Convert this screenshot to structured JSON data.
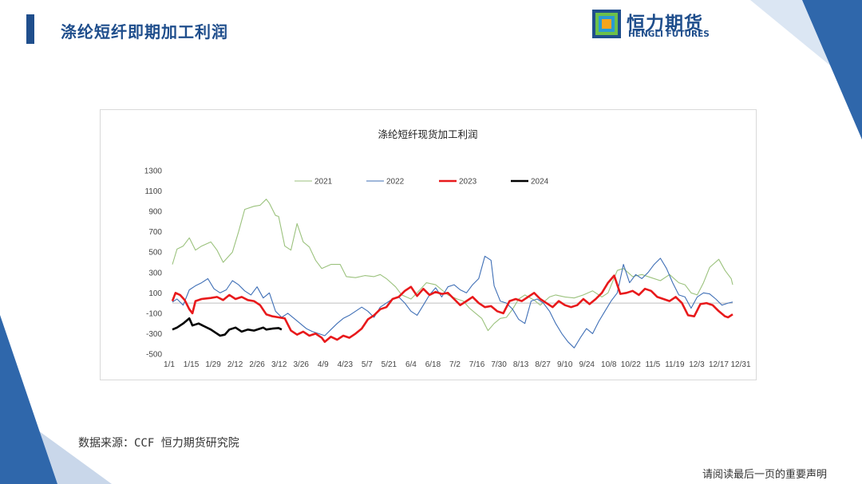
{
  "header": {
    "title": "涤纶短纤即期加工利润",
    "logo_cn": "恒力期货",
    "logo_en": "HENGLI FUTURES"
  },
  "footer": {
    "source": "数据来源：CCF 恒力期货研究院",
    "disclaimer": "请阅读最后一页的重要声明"
  },
  "colors": {
    "brand": "#1f4e8c",
    "s2021": "#9bc27d",
    "s2022": "#3f6fb6",
    "s2023": "#e8191b",
    "s2024": "#000000"
  },
  "chart_data": {
    "type": "line",
    "title": "涤纶短纤现货加工利润",
    "xlabel": "",
    "ylabel": "",
    "ylim": [
      -500,
      1300
    ],
    "yticks": [
      "1300",
      "1100",
      "900",
      "700",
      "500",
      "300",
      "100",
      "-100",
      "-300",
      "-500"
    ],
    "xticks": [
      "1/1",
      "1/15",
      "1/29",
      "2/12",
      "2/26",
      "3/12",
      "3/26",
      "4/9",
      "4/23",
      "5/7",
      "5/21",
      "6/4",
      "6/18",
      "7/2",
      "7/16",
      "7/30",
      "8/13",
      "8/27",
      "9/10",
      "9/24",
      "10/8",
      "10/22",
      "11/5",
      "11/19",
      "12/3",
      "12/17",
      "12/31"
    ],
    "legend_position": "top",
    "series": [
      {
        "name": "2021",
        "points": [
          [
            1,
            380
          ],
          [
            4,
            530
          ],
          [
            8,
            560
          ],
          [
            12,
            640
          ],
          [
            16,
            520
          ],
          [
            20,
            560
          ],
          [
            26,
            600
          ],
          [
            30,
            520
          ],
          [
            34,
            400
          ],
          [
            40,
            500
          ],
          [
            44,
            700
          ],
          [
            48,
            920
          ],
          [
            54,
            950
          ],
          [
            58,
            960
          ],
          [
            62,
            1020
          ],
          [
            64,
            980
          ],
          [
            68,
            860
          ],
          [
            70,
            850
          ],
          [
            74,
            560
          ],
          [
            78,
            520
          ],
          [
            82,
            780
          ],
          [
            86,
            600
          ],
          [
            90,
            550
          ],
          [
            94,
            420
          ],
          [
            98,
            340
          ],
          [
            104,
            380
          ],
          [
            110,
            380
          ],
          [
            114,
            260
          ],
          [
            120,
            250
          ],
          [
            126,
            270
          ],
          [
            132,
            260
          ],
          [
            136,
            280
          ],
          [
            140,
            240
          ],
          [
            146,
            160
          ],
          [
            150,
            80
          ],
          [
            156,
            40
          ],
          [
            160,
            100
          ],
          [
            166,
            200
          ],
          [
            172,
            180
          ],
          [
            176,
            130
          ],
          [
            180,
            80
          ],
          [
            186,
            40
          ],
          [
            190,
            20
          ],
          [
            194,
            -50
          ],
          [
            198,
            -100
          ],
          [
            202,
            -150
          ],
          [
            206,
            -270
          ],
          [
            210,
            -200
          ],
          [
            214,
            -150
          ],
          [
            218,
            -140
          ],
          [
            222,
            -60
          ],
          [
            226,
            40
          ],
          [
            230,
            80
          ],
          [
            236,
            30
          ],
          [
            240,
            -20
          ],
          [
            246,
            60
          ],
          [
            250,
            80
          ],
          [
            256,
            60
          ],
          [
            262,
            50
          ],
          [
            268,
            80
          ],
          [
            274,
            120
          ],
          [
            280,
            60
          ],
          [
            284,
            100
          ],
          [
            290,
            320
          ],
          [
            294,
            340
          ],
          [
            300,
            260
          ],
          [
            306,
            280
          ],
          [
            312,
            250
          ],
          [
            318,
            220
          ],
          [
            324,
            280
          ],
          [
            330,
            200
          ],
          [
            334,
            180
          ],
          [
            338,
            100
          ],
          [
            342,
            80
          ],
          [
            346,
            200
          ],
          [
            350,
            350
          ],
          [
            356,
            430
          ],
          [
            360,
            320
          ],
          [
            364,
            240
          ],
          [
            365,
            180
          ]
        ]
      },
      {
        "name": "2022",
        "points": [
          [
            1,
            10
          ],
          [
            4,
            40
          ],
          [
            8,
            -20
          ],
          [
            12,
            130
          ],
          [
            16,
            170
          ],
          [
            20,
            200
          ],
          [
            24,
            240
          ],
          [
            28,
            140
          ],
          [
            32,
            100
          ],
          [
            36,
            130
          ],
          [
            40,
            220
          ],
          [
            44,
            180
          ],
          [
            48,
            120
          ],
          [
            52,
            80
          ],
          [
            56,
            160
          ],
          [
            60,
            50
          ],
          [
            64,
            100
          ],
          [
            68,
            -80
          ],
          [
            72,
            -140
          ],
          [
            76,
            -100
          ],
          [
            80,
            -150
          ],
          [
            84,
            -200
          ],
          [
            88,
            -250
          ],
          [
            92,
            -280
          ],
          [
            96,
            -300
          ],
          [
            100,
            -320
          ],
          [
            104,
            -260
          ],
          [
            108,
            -200
          ],
          [
            112,
            -150
          ],
          [
            116,
            -120
          ],
          [
            120,
            -80
          ],
          [
            124,
            -40
          ],
          [
            128,
            -80
          ],
          [
            132,
            -140
          ],
          [
            136,
            -40
          ],
          [
            140,
            0
          ],
          [
            144,
            40
          ],
          [
            148,
            60
          ],
          [
            152,
            0
          ],
          [
            156,
            -80
          ],
          [
            160,
            -120
          ],
          [
            164,
            -20
          ],
          [
            168,
            80
          ],
          [
            172,
            150
          ],
          [
            176,
            60
          ],
          [
            180,
            160
          ],
          [
            184,
            180
          ],
          [
            188,
            130
          ],
          [
            192,
            100
          ],
          [
            196,
            180
          ],
          [
            200,
            240
          ],
          [
            204,
            460
          ],
          [
            208,
            420
          ],
          [
            210,
            170
          ],
          [
            214,
            20
          ],
          [
            218,
            0
          ],
          [
            222,
            -60
          ],
          [
            226,
            -160
          ],
          [
            230,
            -200
          ],
          [
            234,
            20
          ],
          [
            238,
            40
          ],
          [
            242,
            0
          ],
          [
            246,
            -80
          ],
          [
            250,
            -200
          ],
          [
            254,
            -300
          ],
          [
            258,
            -380
          ],
          [
            262,
            -440
          ],
          [
            266,
            -340
          ],
          [
            270,
            -250
          ],
          [
            274,
            -300
          ],
          [
            278,
            -180
          ],
          [
            282,
            -80
          ],
          [
            286,
            20
          ],
          [
            290,
            100
          ],
          [
            294,
            380
          ],
          [
            298,
            200
          ],
          [
            302,
            280
          ],
          [
            306,
            240
          ],
          [
            310,
            300
          ],
          [
            314,
            380
          ],
          [
            318,
            440
          ],
          [
            322,
            340
          ],
          [
            326,
            200
          ],
          [
            330,
            80
          ],
          [
            334,
            60
          ],
          [
            338,
            -50
          ],
          [
            342,
            60
          ],
          [
            346,
            100
          ],
          [
            350,
            90
          ],
          [
            354,
            40
          ],
          [
            358,
            -20
          ],
          [
            362,
            0
          ],
          [
            365,
            10
          ]
        ]
      },
      {
        "name": "2023",
        "points": [
          [
            1,
            20
          ],
          [
            3,
            100
          ],
          [
            6,
            80
          ],
          [
            9,
            30
          ],
          [
            12,
            -60
          ],
          [
            14,
            -100
          ],
          [
            16,
            20
          ],
          [
            20,
            40
          ],
          [
            26,
            50
          ],
          [
            30,
            60
          ],
          [
            34,
            30
          ],
          [
            38,
            80
          ],
          [
            42,
            40
          ],
          [
            46,
            60
          ],
          [
            50,
            30
          ],
          [
            54,
            20
          ],
          [
            58,
            -20
          ],
          [
            62,
            -110
          ],
          [
            66,
            -130
          ],
          [
            70,
            -140
          ],
          [
            74,
            -150
          ],
          [
            78,
            -270
          ],
          [
            82,
            -310
          ],
          [
            86,
            -280
          ],
          [
            90,
            -320
          ],
          [
            94,
            -300
          ],
          [
            98,
            -340
          ],
          [
            100,
            -380
          ],
          [
            104,
            -330
          ],
          [
            108,
            -360
          ],
          [
            112,
            -320
          ],
          [
            116,
            -340
          ],
          [
            120,
            -300
          ],
          [
            124,
            -250
          ],
          [
            128,
            -160
          ],
          [
            132,
            -120
          ],
          [
            136,
            -60
          ],
          [
            140,
            -40
          ],
          [
            144,
            40
          ],
          [
            148,
            60
          ],
          [
            152,
            120
          ],
          [
            156,
            160
          ],
          [
            160,
            70
          ],
          [
            164,
            140
          ],
          [
            168,
            80
          ],
          [
            172,
            110
          ],
          [
            176,
            90
          ],
          [
            180,
            100
          ],
          [
            184,
            40
          ],
          [
            188,
            -20
          ],
          [
            192,
            20
          ],
          [
            196,
            60
          ],
          [
            200,
            0
          ],
          [
            204,
            -40
          ],
          [
            208,
            -30
          ],
          [
            212,
            -80
          ],
          [
            216,
            -100
          ],
          [
            220,
            20
          ],
          [
            224,
            40
          ],
          [
            228,
            20
          ],
          [
            232,
            60
          ],
          [
            236,
            100
          ],
          [
            240,
            40
          ],
          [
            244,
            0
          ],
          [
            248,
            -40
          ],
          [
            252,
            20
          ],
          [
            256,
            -20
          ],
          [
            260,
            -40
          ],
          [
            264,
            -20
          ],
          [
            268,
            40
          ],
          [
            272,
            -10
          ],
          [
            276,
            40
          ],
          [
            280,
            100
          ],
          [
            284,
            200
          ],
          [
            288,
            270
          ],
          [
            292,
            90
          ],
          [
            296,
            100
          ],
          [
            300,
            120
          ],
          [
            304,
            80
          ],
          [
            308,
            140
          ],
          [
            312,
            120
          ],
          [
            316,
            60
          ],
          [
            320,
            40
          ],
          [
            324,
            20
          ],
          [
            328,
            60
          ],
          [
            332,
            0
          ],
          [
            336,
            -120
          ],
          [
            340,
            -130
          ],
          [
            344,
            -10
          ],
          [
            348,
            0
          ],
          [
            352,
            -20
          ],
          [
            356,
            -80
          ],
          [
            360,
            -130
          ],
          [
            362,
            -140
          ],
          [
            365,
            -110
          ]
        ]
      },
      {
        "name": "2024",
        "points": [
          [
            1,
            -260
          ],
          [
            4,
            -240
          ],
          [
            8,
            -200
          ],
          [
            12,
            -150
          ],
          [
            14,
            -220
          ],
          [
            18,
            -200
          ],
          [
            22,
            -230
          ],
          [
            26,
            -260
          ],
          [
            30,
            -300
          ],
          [
            32,
            -320
          ],
          [
            35,
            -310
          ],
          [
            38,
            -260
          ],
          [
            42,
            -240
          ],
          [
            46,
            -280
          ],
          [
            50,
            -260
          ],
          [
            54,
            -270
          ],
          [
            58,
            -250
          ],
          [
            60,
            -240
          ],
          [
            62,
            -260
          ],
          [
            66,
            -250
          ],
          [
            70,
            -245
          ],
          [
            72,
            -260
          ]
        ]
      }
    ]
  }
}
